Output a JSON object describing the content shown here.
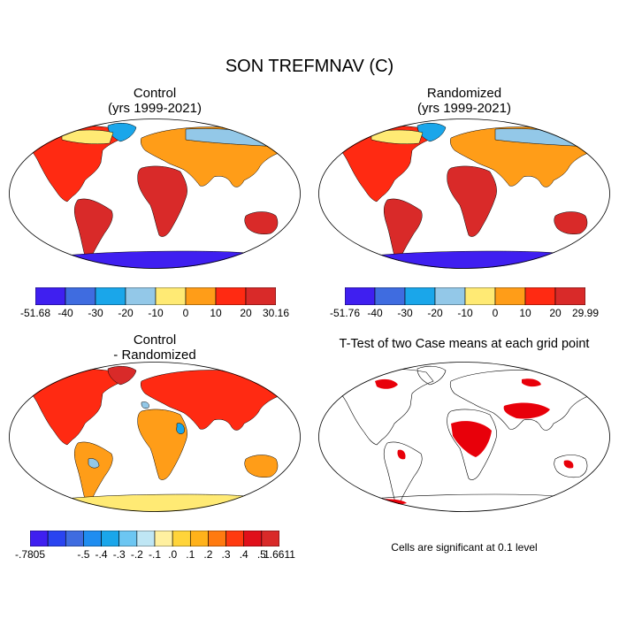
{
  "title": "SON TREFMNAV (C)",
  "panels": {
    "control": {
      "title": "Control",
      "subtitle": "(yrs 1999-2021)"
    },
    "randomized": {
      "title": "Randomized",
      "subtitle": "(yrs 1999-2021)"
    },
    "difference": {
      "title": "Control",
      "subtitle": "- Randomized"
    },
    "ttest": {
      "title": "T-Test of two Case means at each grid point",
      "note": "Cells are significant at 0.1 level"
    }
  },
  "colorbars": {
    "control": {
      "labels": [
        "-51.68",
        "-40",
        "-30",
        "-20",
        "-10",
        "0",
        "10",
        "20",
        "30.16"
      ],
      "colors": [
        "#3f1ff0",
        "#3f6ce0",
        "#1aa6ea",
        "#93c8e8",
        "#ffea74",
        "#ff9d18",
        "#ff2a12",
        "#d92a29"
      ]
    },
    "randomized": {
      "labels": [
        "-51.76",
        "-40",
        "-30",
        "-20",
        "-10",
        "0",
        "10",
        "20",
        "29.99"
      ],
      "colors": [
        "#3f1ff0",
        "#3f6ce0",
        "#1aa6ea",
        "#93c8e8",
        "#ffea74",
        "#ff9d18",
        "#ff2a12",
        "#d92a29"
      ]
    },
    "difference": {
      "labels": [
        "-.7805",
        "-.5",
        "-.4",
        "-.3",
        "-.2",
        "-.1",
        ".0",
        ".1",
        ".2",
        ".3",
        ".4",
        ".5",
        "1.6611"
      ],
      "colors": [
        "#3f1ff0",
        "#2a44f0",
        "#3f6ce0",
        "#1f8df0",
        "#1aa6ea",
        "#6cc6f2",
        "#bfe6f4",
        "#fff0a0",
        "#ffd43a",
        "#ffb21a",
        "#ff7a10",
        "#ff3a10",
        "#e0101a",
        "#d92a29"
      ]
    }
  },
  "colors": {
    "land_warm": "#d92a29",
    "land_hot": "#ff2a12",
    "land_mid": "#ff9d18",
    "land_cool": "#ffea74",
    "ice_light": "#93c8e8",
    "ice_mid": "#1aa6ea",
    "ice_deep": "#3f1ff0",
    "significant": "#e8000a"
  }
}
